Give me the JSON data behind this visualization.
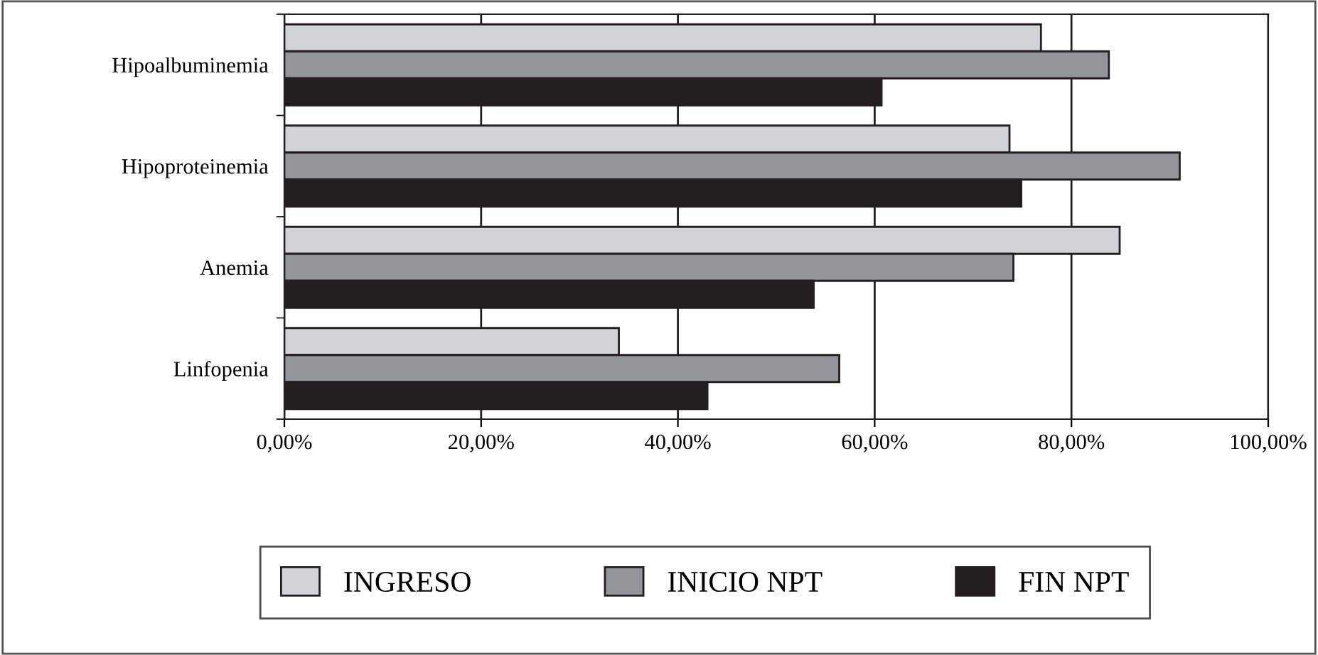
{
  "chart_data": {
    "type": "bar",
    "orientation": "horizontal",
    "categories": [
      "Hipoalbuminemia",
      "Hipoproteinemia",
      "Anemia",
      "Linfopenia"
    ],
    "series": [
      {
        "name": "INGRESO",
        "color": "#d1d3d4",
        "values": [
          76.9,
          73.7,
          84.9,
          34.0
        ]
      },
      {
        "name": "INICIO NPT",
        "color": "#939598",
        "values": [
          83.8,
          91.0,
          74.1,
          56.4
        ]
      },
      {
        "name": "FIN NPT",
        "color": "#231f20",
        "values": [
          60.7,
          74.9,
          53.8,
          43.0
        ]
      }
    ],
    "xlim": [
      0,
      100
    ],
    "xticks": [
      {
        "value": 0,
        "label": "0,00%"
      },
      {
        "value": 20,
        "label": "20,00%"
      },
      {
        "value": 40,
        "label": "40,00%"
      },
      {
        "value": 60,
        "label": "60,00%"
      },
      {
        "value": 80,
        "label": "80,00%"
      },
      {
        "value": 100,
        "label": "100,00%"
      }
    ],
    "grid": "x",
    "legend": "bottom"
  }
}
